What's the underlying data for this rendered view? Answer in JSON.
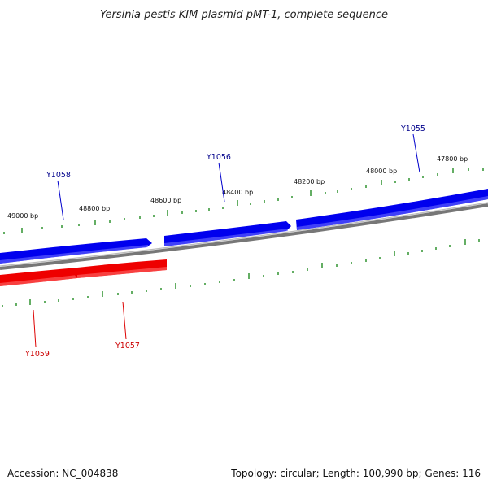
{
  "title": "Yersinia pestis KIM plasmid pMT-1, complete sequence",
  "footer": {
    "accession": "Accession: NC_004838",
    "summary": "Topology: circular; Length: 100,990 bp; Genes: 116"
  },
  "colors": {
    "forward_strand": "#0000ee",
    "reverse_strand": "#ee0000",
    "backbone": "#888888",
    "ticks": "#228b22",
    "forward_label": "#00008b",
    "reverse_label": "#cc0000"
  },
  "ticks": [
    {
      "label": "49000 bp"
    },
    {
      "label": "48800 bp"
    },
    {
      "label": "48600 bp"
    },
    {
      "label": "48400 bp"
    },
    {
      "label": "48200 bp"
    },
    {
      "label": "48000 bp"
    },
    {
      "label": "47800 bp"
    }
  ],
  "genes_forward": [
    {
      "label": "Y1058"
    },
    {
      "label": "Y1056"
    },
    {
      "label": "Y1055"
    }
  ],
  "genes_reverse": [
    {
      "label": "Y1059"
    },
    {
      "label": "Y1057"
    }
  ]
}
